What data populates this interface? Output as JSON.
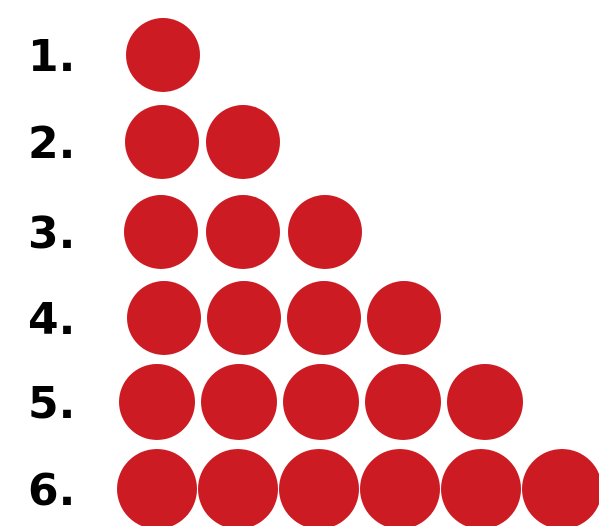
{
  "rows": [
    {
      "label": "1.",
      "count": 1
    },
    {
      "label": "2.",
      "count": 2
    },
    {
      "label": "3.",
      "count": 3
    },
    {
      "label": "4.",
      "count": 4
    },
    {
      "label": "5.",
      "count": 5
    },
    {
      "label": "6.",
      "count": 6
    }
  ],
  "colors": {
    "dot": "#CC1B22",
    "text": "#000000",
    "background": "#FFFFFF"
  },
  "icon": "filled-circle"
}
